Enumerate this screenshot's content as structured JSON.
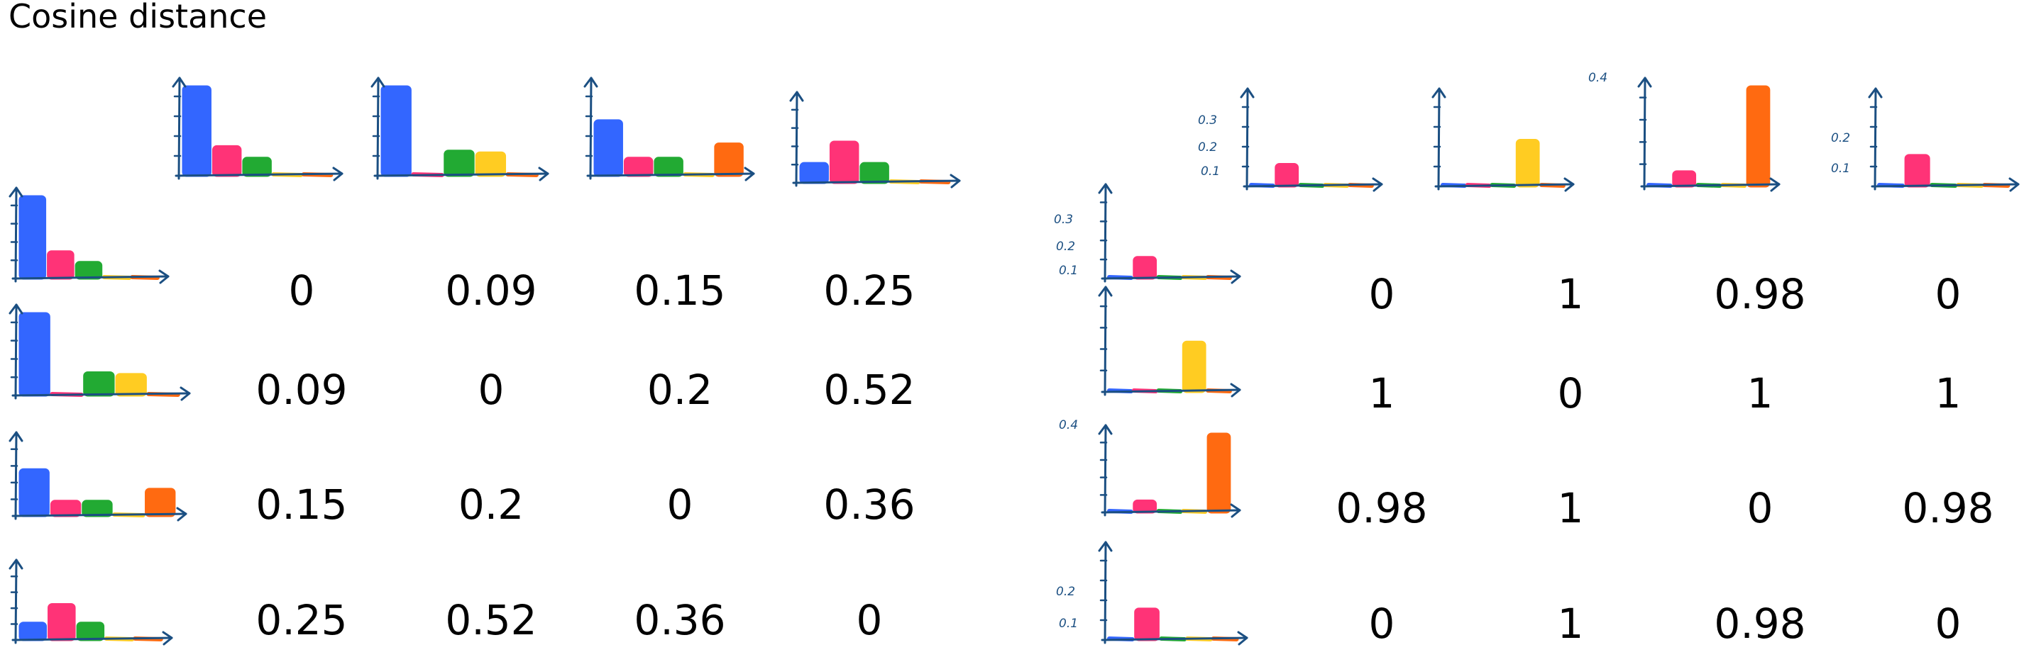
{
  "title": "Cosine distance",
  "colors": {
    "axis": "#1b4f82",
    "blue": "#3366ff",
    "pink": "#ff3377",
    "green": "#22aa33",
    "yellow": "#ffcc22",
    "orange": "#ff6a11"
  },
  "left_matrix": {
    "rows": [
      [
        "0",
        "0.09",
        "0.15",
        "0.25"
      ],
      [
        "0.09",
        "0",
        "0.2",
        "0.52"
      ],
      [
        "0.15",
        "0.2",
        "0",
        "0.36"
      ],
      [
        "0.25",
        "0.52",
        "0.36",
        "0"
      ]
    ]
  },
  "right_matrix": {
    "rows": [
      [
        "0",
        "1",
        "0.98",
        "0"
      ],
      [
        "1",
        "0",
        "1",
        "1"
      ],
      [
        "0.98",
        "1",
        "0",
        "0.98"
      ],
      [
        "0",
        "1",
        "0.98",
        "0"
      ]
    ]
  },
  "ticks": {
    "a": [
      "0.3",
      "0.2",
      "0.1"
    ],
    "c": "0.4",
    "d": [
      "0.2",
      "0.1"
    ]
  }
}
